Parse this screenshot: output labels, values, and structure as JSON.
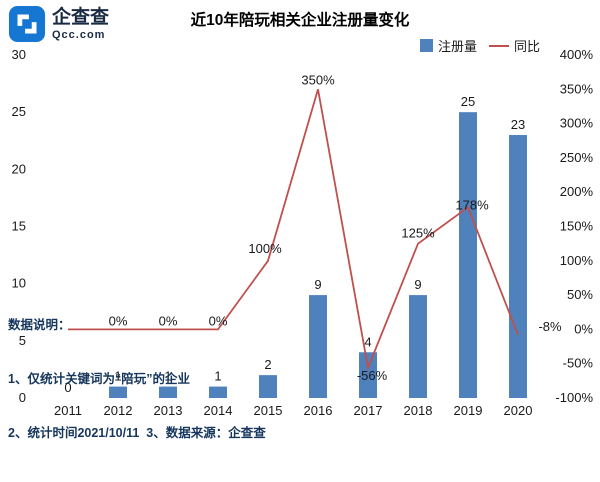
{
  "logo": {
    "name": "企查查",
    "domain": "Qcc.com"
  },
  "colors": {
    "bar": "#4F81BD",
    "line": "#C0504D",
    "logo_blue": "#1677d2",
    "notes_text": "#17365d"
  },
  "chart_data": {
    "type": "bar",
    "title": "近10年陪玩相关企业注册量变化",
    "categories": [
      "2011",
      "2012",
      "2013",
      "2014",
      "2015",
      "2016",
      "2017",
      "2018",
      "2019",
      "2020"
    ],
    "series": [
      {
        "name": "注册量",
        "type": "bar",
        "axis": "left",
        "color": "#4F81BD",
        "values": [
          0,
          1,
          1,
          1,
          2,
          9,
          4,
          9,
          25,
          23
        ]
      },
      {
        "name": "同比",
        "type": "line",
        "axis": "right",
        "color": "#C0504D",
        "values": [
          0,
          0,
          0,
          0,
          100,
          350,
          -56,
          125,
          178,
          -8
        ],
        "point_labels": [
          "",
          "0%",
          "0%",
          "0%",
          "100%",
          "350%",
          "-56%",
          "125%",
          "178%",
          "-8%"
        ]
      }
    ],
    "left_axis": {
      "min": 0,
      "max": 30,
      "step": 5
    },
    "right_axis": {
      "min": -100,
      "max": 400,
      "step": 50,
      "suffix": "%"
    },
    "legend": [
      "注册量",
      "同比"
    ],
    "legend_position": "top-right",
    "grid": false
  },
  "footer": {
    "heading": "数据说明：",
    "line1": "1、仅统计关键词为“陪玩”的企业",
    "line2": "2、统计时间2021/10/11  3、数据来源：企查查"
  }
}
